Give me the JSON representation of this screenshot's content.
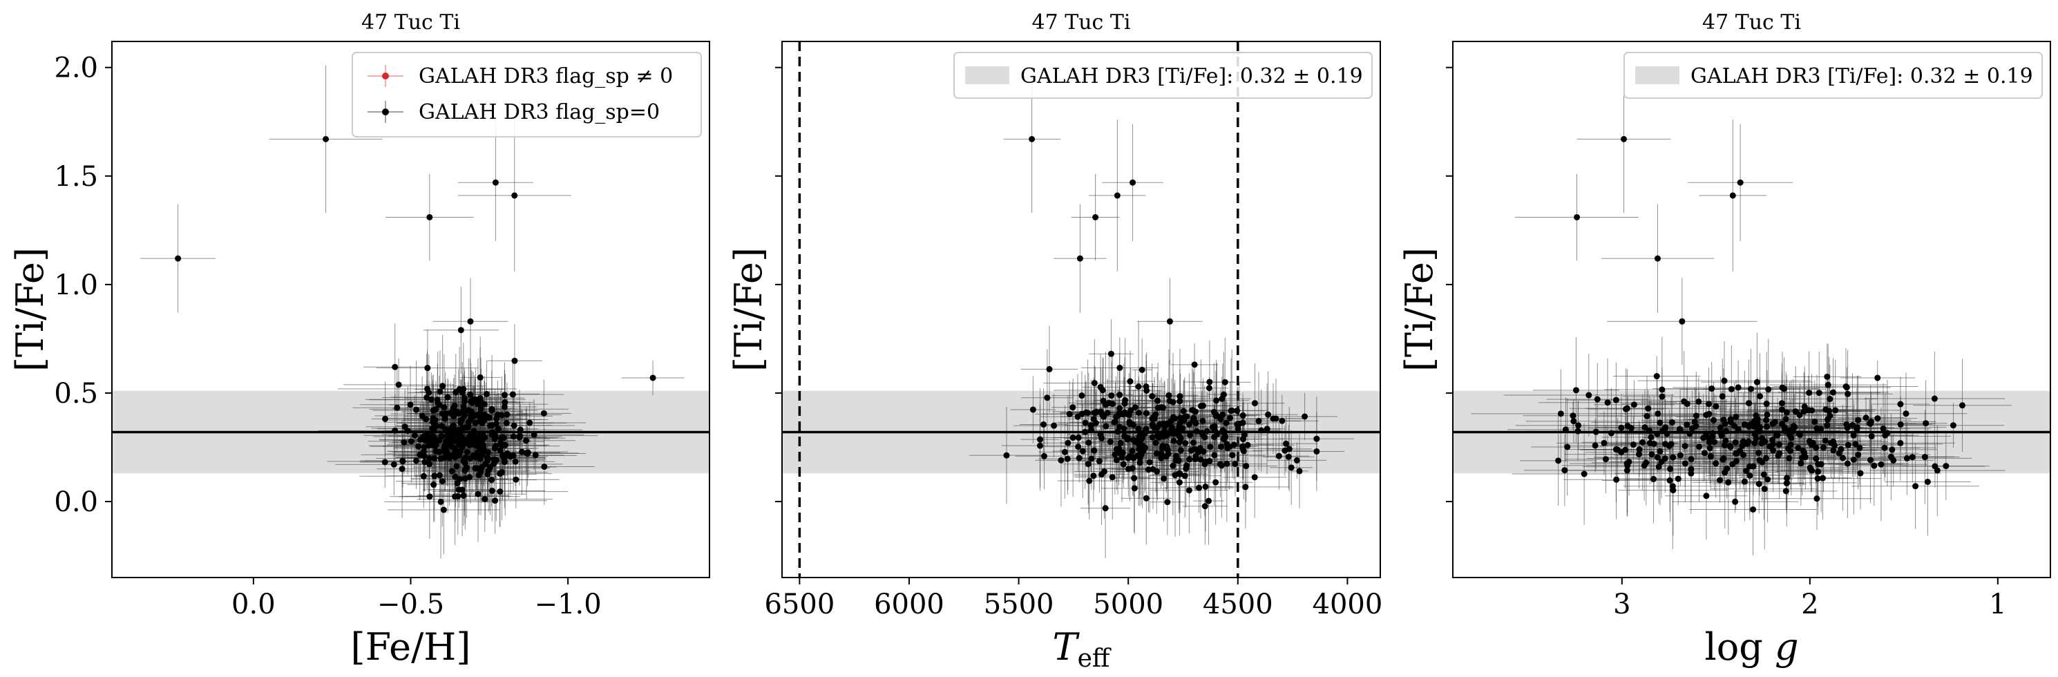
{
  "chart_data": [
    {
      "type": "scatter",
      "title": "47 Tuc Ti",
      "xlabel": "[Fe/H]",
      "ylabel": "[Ti/Fe]",
      "xlim": [
        0.45,
        -1.45
      ],
      "ylim": [
        -0.35,
        2.12
      ],
      "xticks": [
        0.0,
        -0.5,
        -1.0
      ],
      "xtick_labels": [
        "0.0",
        "−0.5",
        "−1.0"
      ],
      "yticks": [
        0.0,
        0.5,
        1.0,
        1.5,
        2.0
      ],
      "ytick_labels": [
        "0.0",
        "0.5",
        "1.0",
        "1.5",
        "2.0"
      ],
      "show_yticklabels": true,
      "band": {
        "center": 0.32,
        "sigma": 0.19
      },
      "vlines": [],
      "legend": {
        "placement": "top-right",
        "entries": [
          {
            "marker": "errorbar",
            "color": "#d62728",
            "text": "GALAH DR3 flag_sp ≠ 0"
          },
          {
            "marker": "errorbar",
            "color": "#000000",
            "text": "GALAH DR3 flag_sp=0"
          }
        ]
      },
      "series": [
        {
          "name": "GALAH DR3 flag_sp=0",
          "color": "#000000",
          "points": [
            {
              "x": 0.24,
              "y": 1.12,
              "xerr": 0.12,
              "yerr": 0.25
            },
            {
              "x": -0.23,
              "y": 1.67,
              "xerr": 0.18,
              "yerr": 0.34
            },
            {
              "x": -0.56,
              "y": 1.31,
              "xerr": 0.14,
              "yerr": 0.2
            },
            {
              "x": -0.77,
              "y": 1.47,
              "xerr": 0.12,
              "yerr": 0.27
            },
            {
              "x": -0.83,
              "y": 1.41,
              "xerr": 0.18,
              "yerr": 0.35
            },
            {
              "x": -1.27,
              "y": 0.57,
              "xerr": 0.1,
              "yerr": 0.08
            },
            {
              "x": -0.45,
              "y": 0.62,
              "xerr": 0.1,
              "yerr": 0.2
            },
            {
              "x": -0.66,
              "y": 0.79,
              "xerr": 0.12,
              "yerr": 0.2
            },
            {
              "x": -0.69,
              "y": 0.83,
              "xerr": 0.12,
              "yerr": 0.2
            }
          ],
          "cluster": {
            "n": 330,
            "x_center": -0.67,
            "x_sd": 0.09,
            "y_center": 0.3,
            "y_sd": 0.12,
            "xerr_center": 0.13,
            "xerr_sd": 0.05,
            "yerr_center": 0.17,
            "yerr_sd": 0.05,
            "seed": 11
          }
        }
      ]
    },
    {
      "type": "scatter",
      "title": "47 Tuc Ti",
      "xlabel": "T_eff",
      "ylabel": "[Ti/Fe]",
      "xlim": [
        6580,
        3850
      ],
      "ylim": [
        -0.35,
        2.12
      ],
      "xticks": [
        6500,
        6000,
        5500,
        5000,
        4500,
        4000
      ],
      "xtick_labels": [
        "6500",
        "6000",
        "5500",
        "5000",
        "4500",
        "4000"
      ],
      "yticks": [
        0.0,
        0.5,
        1.0,
        1.5,
        2.0
      ],
      "ytick_labels": [
        "0.0",
        "0.5",
        "1.0",
        "1.5",
        "2.0"
      ],
      "show_yticklabels": false,
      "band": {
        "center": 0.32,
        "sigma": 0.19
      },
      "vlines": [
        6500,
        4500
      ],
      "legend": {
        "placement": "top-right",
        "entries": [
          {
            "marker": "patch",
            "color": "#dddddd",
            "text": "GALAH DR3 [Ti/Fe]: 0.32 ± 0.19"
          }
        ]
      },
      "series": [
        {
          "name": "GALAH DR3 flag_sp=0",
          "color": "#000000",
          "points": [
            {
              "x": 5440,
              "y": 1.67,
              "xerr": 130,
              "yerr": 0.34
            },
            {
              "x": 5050,
              "y": 1.41,
              "xerr": 130,
              "yerr": 0.35
            },
            {
              "x": 4980,
              "y": 1.47,
              "xerr": 140,
              "yerr": 0.27
            },
            {
              "x": 5150,
              "y": 1.31,
              "xerr": 110,
              "yerr": 0.2
            },
            {
              "x": 5220,
              "y": 1.12,
              "xerr": 120,
              "yerr": 0.25
            },
            {
              "x": 5360,
              "y": 0.61,
              "xerr": 130,
              "yerr": 0.2
            },
            {
              "x": 4810,
              "y": 0.83,
              "xerr": 150,
              "yerr": 0.2
            }
          ],
          "cluster": {
            "n": 330,
            "x_center": 4800,
            "x_sd": 260,
            "y_center": 0.3,
            "y_sd": 0.12,
            "xerr_center": 130,
            "xerr_sd": 40,
            "yerr_center": 0.17,
            "yerr_sd": 0.05,
            "seed": 23
          }
        }
      ]
    },
    {
      "type": "scatter",
      "title": "47 Tuc Ti",
      "xlabel": "log g",
      "ylabel": "[Ti/Fe]",
      "xlim": [
        3.9,
        0.72
      ],
      "ylim": [
        -0.35,
        2.12
      ],
      "xticks": [
        3,
        2,
        1
      ],
      "xtick_labels": [
        "3",
        "2",
        "1"
      ],
      "yticks": [
        0.0,
        0.5,
        1.0,
        1.5,
        2.0
      ],
      "ytick_labels": [
        "0.0",
        "0.5",
        "1.0",
        "1.5",
        "2.0"
      ],
      "show_yticklabels": false,
      "band": {
        "center": 0.32,
        "sigma": 0.19
      },
      "vlines": [],
      "legend": {
        "placement": "top-right",
        "entries": [
          {
            "marker": "patch",
            "color": "#dddddd",
            "text": "GALAH DR3 [Ti/Fe]: 0.32 ± 0.19"
          }
        ]
      },
      "series": [
        {
          "name": "GALAH DR3 flag_sp=0",
          "color": "#000000",
          "points": [
            {
              "x": 2.99,
              "y": 1.67,
              "xerr": 0.25,
              "yerr": 0.34
            },
            {
              "x": 2.37,
              "y": 1.47,
              "xerr": 0.28,
              "yerr": 0.27
            },
            {
              "x": 2.41,
              "y": 1.41,
              "xerr": 0.18,
              "yerr": 0.35
            },
            {
              "x": 3.24,
              "y": 1.31,
              "xerr": 0.33,
              "yerr": 0.2
            },
            {
              "x": 2.81,
              "y": 1.12,
              "xerr": 0.3,
              "yerr": 0.25
            },
            {
              "x": 1.64,
              "y": 0.57,
              "xerr": 0.2,
              "yerr": 0.08
            },
            {
              "x": 2.68,
              "y": 0.83,
              "xerr": 0.4,
              "yerr": 0.2
            }
          ],
          "cluster": {
            "n": 330,
            "x_center": 2.3,
            "x_sd": 0.45,
            "y_center": 0.3,
            "y_sd": 0.12,
            "xerr_center": 0.28,
            "xerr_sd": 0.08,
            "yerr_center": 0.17,
            "yerr_sd": 0.05,
            "seed": 37
          }
        }
      ]
    }
  ]
}
